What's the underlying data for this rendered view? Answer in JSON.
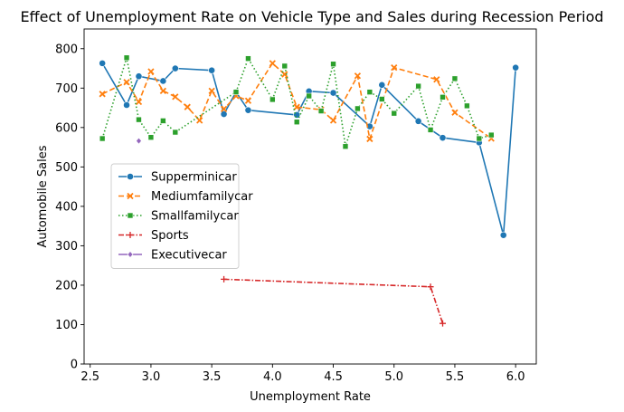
{
  "chart_data": {
    "type": "line",
    "title": "Effect of Unemployment Rate on Vehicle Type and Sales during Recession Period",
    "xlabel": "Unemployment Rate",
    "ylabel": "Automobile Sales",
    "xlim": [
      2.45,
      6.17
    ],
    "ylim": [
      0,
      850
    ],
    "xticks": [
      "2.5",
      "3.0",
      "3.5",
      "4.0",
      "4.5",
      "5.0",
      "5.5",
      "6.0"
    ],
    "yticks": [
      "0",
      "100",
      "200",
      "300",
      "400",
      "500",
      "600",
      "700",
      "800"
    ],
    "grid": false,
    "legend_position": "center-left",
    "series": [
      {
        "name": "Supperminicar",
        "color": "#1f77b4",
        "dash": "solid",
        "marker": "circle",
        "points": [
          [
            2.6,
            763
          ],
          [
            2.8,
            657
          ],
          [
            2.9,
            730
          ],
          [
            3.1,
            718
          ],
          [
            3.2,
            750
          ],
          [
            3.5,
            745
          ],
          [
            3.6,
            634
          ],
          [
            3.7,
            690
          ],
          [
            3.8,
            644
          ],
          [
            4.2,
            632
          ],
          [
            4.3,
            692
          ],
          [
            4.5,
            688
          ],
          [
            4.8,
            603
          ],
          [
            4.9,
            708
          ],
          [
            5.2,
            616
          ],
          [
            5.4,
            574
          ],
          [
            5.7,
            562
          ],
          [
            5.9,
            327
          ],
          [
            6.0,
            752
          ]
        ]
      },
      {
        "name": "Mediumfamilycar",
        "color": "#ff7f0e",
        "dash": "dashed",
        "marker": "x",
        "points": [
          [
            2.6,
            685
          ],
          [
            2.8,
            715
          ],
          [
            2.9,
            665
          ],
          [
            3.0,
            742
          ],
          [
            3.1,
            693
          ],
          [
            3.2,
            678
          ],
          [
            3.3,
            652
          ],
          [
            3.4,
            618
          ],
          [
            3.5,
            693
          ],
          [
            3.6,
            647
          ],
          [
            3.7,
            680
          ],
          [
            3.8,
            668
          ],
          [
            4.0,
            763
          ],
          [
            4.1,
            735
          ],
          [
            4.2,
            652
          ],
          [
            4.4,
            645
          ],
          [
            4.5,
            618
          ],
          [
            4.7,
            731
          ],
          [
            4.8,
            571
          ],
          [
            5.0,
            752
          ],
          [
            5.35,
            722
          ],
          [
            5.5,
            638
          ],
          [
            5.8,
            572
          ]
        ]
      },
      {
        "name": "Smallfamilycar",
        "color": "#2ca02c",
        "dash": "dotted",
        "marker": "square",
        "points": [
          [
            2.6,
            572
          ],
          [
            2.8,
            777
          ],
          [
            2.9,
            620
          ],
          [
            3.0,
            575
          ],
          [
            3.1,
            617
          ],
          [
            3.2,
            588
          ],
          [
            3.7,
            690
          ],
          [
            3.8,
            775
          ],
          [
            4.0,
            671
          ],
          [
            4.1,
            756
          ],
          [
            4.2,
            614
          ],
          [
            4.3,
            680
          ],
          [
            4.4,
            642
          ],
          [
            4.5,
            761
          ],
          [
            4.6,
            552
          ],
          [
            4.7,
            648
          ],
          [
            4.8,
            690
          ],
          [
            4.9,
            672
          ],
          [
            5.0,
            636
          ],
          [
            5.2,
            705
          ],
          [
            5.3,
            594
          ],
          [
            5.4,
            677
          ],
          [
            5.5,
            724
          ],
          [
            5.6,
            655
          ],
          [
            5.7,
            572
          ],
          [
            5.8,
            581
          ]
        ]
      },
      {
        "name": "Sports",
        "color": "#d62728",
        "dash": "dashdot",
        "marker": "plus",
        "points": [
          [
            3.6,
            215
          ],
          [
            5.3,
            196
          ],
          [
            5.4,
            103
          ]
        ]
      },
      {
        "name": "Executivecar",
        "color": "#9467bd",
        "dash": "solid",
        "marker": "diamond",
        "points": [
          [
            2.9,
            566
          ]
        ]
      }
    ]
  }
}
